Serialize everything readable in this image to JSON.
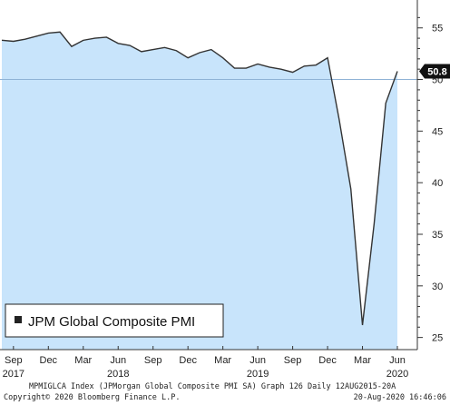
{
  "chart_data": {
    "type": "area",
    "series": [
      {
        "name": "JPM Global Composite PMI",
        "color": "#c8e4fb",
        "line_color": "#333333",
        "points": [
          {
            "x": "2017-08",
            "y": 53.8
          },
          {
            "x": "2017-09",
            "y": 53.7
          },
          {
            "x": "2017-10",
            "y": 53.9
          },
          {
            "x": "2017-11",
            "y": 54.2
          },
          {
            "x": "2017-12",
            "y": 54.5
          },
          {
            "x": "2018-01",
            "y": 54.6
          },
          {
            "x": "2018-02",
            "y": 53.2
          },
          {
            "x": "2018-03",
            "y": 53.8
          },
          {
            "x": "2018-04",
            "y": 54.0
          },
          {
            "x": "2018-05",
            "y": 54.1
          },
          {
            "x": "2018-06",
            "y": 53.5
          },
          {
            "x": "2018-07",
            "y": 53.3
          },
          {
            "x": "2018-08",
            "y": 52.7
          },
          {
            "x": "2018-09",
            "y": 52.9
          },
          {
            "x": "2018-10",
            "y": 53.1
          },
          {
            "x": "2018-11",
            "y": 52.8
          },
          {
            "x": "2018-12",
            "y": 52.1
          },
          {
            "x": "2019-01",
            "y": 52.6
          },
          {
            "x": "2019-02",
            "y": 52.9
          },
          {
            "x": "2019-03",
            "y": 52.1
          },
          {
            "x": "2019-04",
            "y": 51.1
          },
          {
            "x": "2019-05",
            "y": 51.1
          },
          {
            "x": "2019-06",
            "y": 51.5
          },
          {
            "x": "2019-07",
            "y": 51.2
          },
          {
            "x": "2019-08",
            "y": 51.0
          },
          {
            "x": "2019-09",
            "y": 50.7
          },
          {
            "x": "2019-10",
            "y": 51.3
          },
          {
            "x": "2019-11",
            "y": 51.4
          },
          {
            "x": "2019-12",
            "y": 52.1
          },
          {
            "x": "2020-01",
            "y": 46.1
          },
          {
            "x": "2020-02",
            "y": 39.4
          },
          {
            "x": "2020-03",
            "y": 26.2
          },
          {
            "x": "2020-04",
            "y": 36.0
          },
          {
            "x": "2020-05",
            "y": 47.7
          },
          {
            "x": "2020-06",
            "y": 50.8
          }
        ]
      }
    ],
    "last_value_label": "50.8",
    "reference_line": 50,
    "ylim": [
      24,
      57
    ],
    "yticks": [
      25,
      30,
      35,
      40,
      45,
      50,
      55
    ],
    "y_axis_side": "right",
    "grid": false,
    "legend": {
      "label": "JPM Global Composite PMI",
      "placement": "bottom-left"
    },
    "xaxis": {
      "month_ticks": [
        {
          "x": "2017-09",
          "label": "Sep"
        },
        {
          "x": "2017-12",
          "label": "Dec"
        },
        {
          "x": "2018-03",
          "label": "Mar"
        },
        {
          "x": "2018-06",
          "label": "Jun"
        },
        {
          "x": "2018-09",
          "label": "Sep"
        },
        {
          "x": "2018-12",
          "label": "Dec"
        },
        {
          "x": "2019-03",
          "label": "Mar"
        },
        {
          "x": "2019-06",
          "label": "Jun"
        },
        {
          "x": "2019-09",
          "label": "Sep"
        },
        {
          "x": "2019-12",
          "label": "Dec"
        },
        {
          "x": "2020-03",
          "label": "Mar"
        },
        {
          "x": "2020-06",
          "label": "Jun"
        }
      ],
      "year_labels": [
        {
          "x": "2017-09",
          "label": "2017"
        },
        {
          "x": "2018-06",
          "label": "2018"
        },
        {
          "x": "2019-06",
          "label": "2019"
        },
        {
          "x": "2020-06",
          "label": "2020"
        }
      ]
    },
    "footer": {
      "line1": "MPMIGLCA Index (JPMorgan Global Composite PMI SA) Graph 126  Daily 12AUG2015-20A",
      "copyright": "Copyright© 2020 Bloomberg Finance L.P.",
      "timestamp": "20-Aug-2020 16:46:06"
    }
  }
}
